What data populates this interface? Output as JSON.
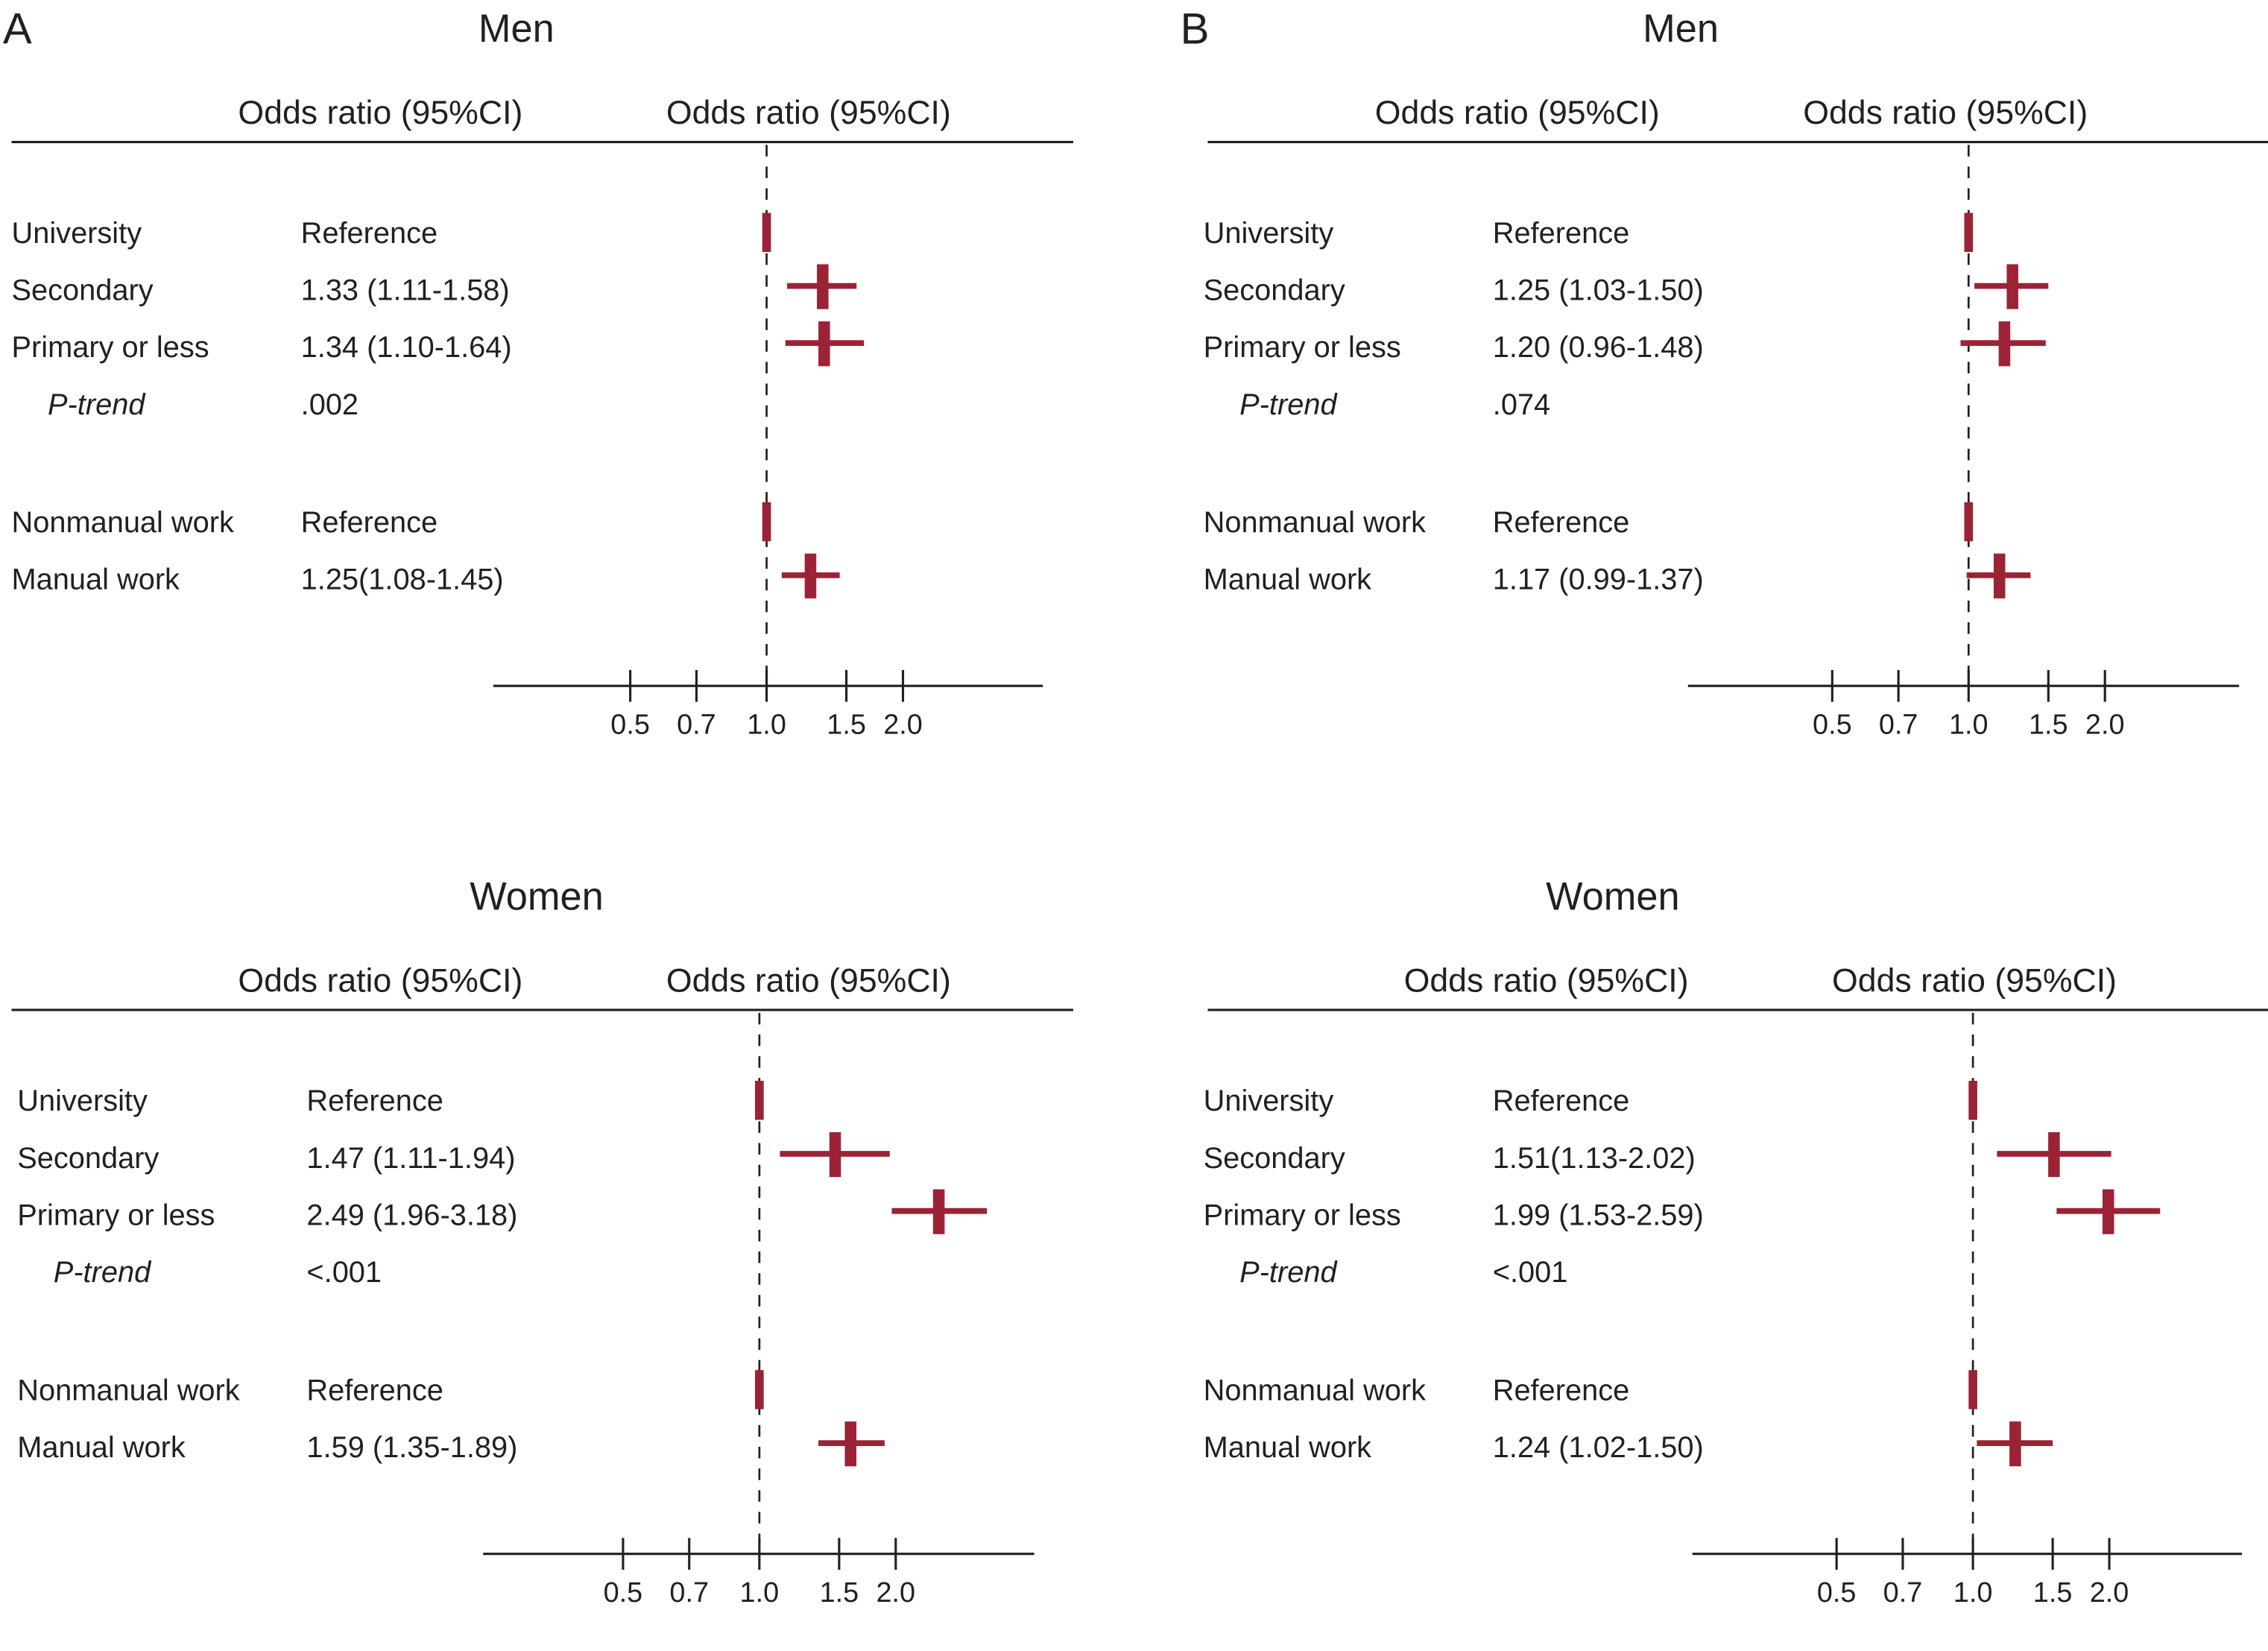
{
  "colors": {
    "marker": "#9b2335",
    "text": "#231f20"
  },
  "chart_data": [
    {
      "type": "forest",
      "panel_letter": "A",
      "title": "Men",
      "column_headers": [
        "Odds ratio (95%CI)",
        "Odds ratio (95%CI)"
      ],
      "x_scale": "log",
      "xticks": [
        "0.5",
        "0.7",
        "1.0",
        "1.5",
        "2.0"
      ],
      "reference_line": 1.0,
      "rows": [
        {
          "label": "University",
          "text": "Reference",
          "or": 1.0,
          "reference": true
        },
        {
          "label": "Secondary",
          "text": "1.33 (1.11-1.58)",
          "or": 1.33,
          "lo": 1.11,
          "hi": 1.58
        },
        {
          "label": "Primary or less",
          "text": "1.34 (1.10-1.64)",
          "or": 1.34,
          "lo": 1.1,
          "hi": 1.64
        },
        {
          "label": "P-trend",
          "text": ".002",
          "italic": true
        },
        {
          "label": "Nonmanual work",
          "text": "Reference",
          "or": 1.0,
          "reference": true
        },
        {
          "label": "Manual work",
          "text": "1.25(1.08-1.45)",
          "or": 1.25,
          "lo": 1.08,
          "hi": 1.45
        }
      ]
    },
    {
      "type": "forest",
      "panel_letter": "",
      "title": "Women",
      "column_headers": [
        "Odds ratio (95%CI)",
        "Odds ratio (95%CI)"
      ],
      "x_scale": "log",
      "xticks": [
        "0.5",
        "0.7",
        "1.0",
        "1.5",
        "2.0"
      ],
      "reference_line": 1.0,
      "rows": [
        {
          "label": "University",
          "text": "Reference",
          "or": 1.0,
          "reference": true
        },
        {
          "label": "Secondary",
          "text": "1.47 (1.11-1.94)",
          "or": 1.47,
          "lo": 1.11,
          "hi": 1.94
        },
        {
          "label": "Primary or less",
          "text": "2.49 (1.96-3.18)",
          "or": 2.49,
          "lo": 1.96,
          "hi": 3.18
        },
        {
          "label": "P-trend",
          "text": "<.001",
          "italic": true
        },
        {
          "label": "Nonmanual work",
          "text": "Reference",
          "or": 1.0,
          "reference": true
        },
        {
          "label": "Manual work",
          "text": "1.59 (1.35-1.89)",
          "or": 1.59,
          "lo": 1.35,
          "hi": 1.89
        }
      ]
    },
    {
      "type": "forest",
      "panel_letter": "B",
      "title": "Men",
      "column_headers": [
        "Odds ratio (95%CI)",
        "Odds ratio (95%CI)"
      ],
      "x_scale": "log",
      "xticks": [
        "0.5",
        "0.7",
        "1.0",
        "1.5",
        "2.0"
      ],
      "reference_line": 1.0,
      "rows": [
        {
          "label": "University",
          "text": "Reference",
          "or": 1.0,
          "reference": true
        },
        {
          "label": "Secondary",
          "text": "1.25 (1.03-1.50)",
          "or": 1.25,
          "lo": 1.03,
          "hi": 1.5
        },
        {
          "label": "Primary or less",
          "text": "1.20 (0.96-1.48)",
          "or": 1.2,
          "lo": 0.96,
          "hi": 1.48
        },
        {
          "label": "P-trend",
          "text": ".074",
          "italic": true
        },
        {
          "label": "Nonmanual work",
          "text": "Reference",
          "or": 1.0,
          "reference": true
        },
        {
          "label": "Manual work",
          "text": "1.17 (0.99-1.37)",
          "or": 1.17,
          "lo": 0.99,
          "hi": 1.37
        }
      ]
    },
    {
      "type": "forest",
      "panel_letter": "",
      "title": "Women",
      "column_headers": [
        "Odds ratio (95%CI)",
        "Odds ratio (95%CI)"
      ],
      "x_scale": "log",
      "xticks": [
        "0.5",
        "0.7",
        "1.0",
        "1.5",
        "2.0"
      ],
      "reference_line": 1.0,
      "rows": [
        {
          "label": "University",
          "text": "Reference",
          "or": 1.0,
          "reference": true
        },
        {
          "label": "Secondary",
          "text": "1.51(1.13-2.02)",
          "or": 1.51,
          "lo": 1.13,
          "hi": 2.02
        },
        {
          "label": "Primary or less",
          "text": "1.99 (1.53-2.59)",
          "or": 1.99,
          "lo": 1.53,
          "hi": 2.59
        },
        {
          "label": "P-trend",
          "text": "<.001",
          "italic": true
        },
        {
          "label": "Nonmanual work",
          "text": "Reference",
          "or": 1.0,
          "reference": true
        },
        {
          "label": "Manual work",
          "text": "1.24 (1.02-1.50)",
          "or": 1.24,
          "lo": 1.02,
          "hi": 1.5
        }
      ]
    }
  ]
}
